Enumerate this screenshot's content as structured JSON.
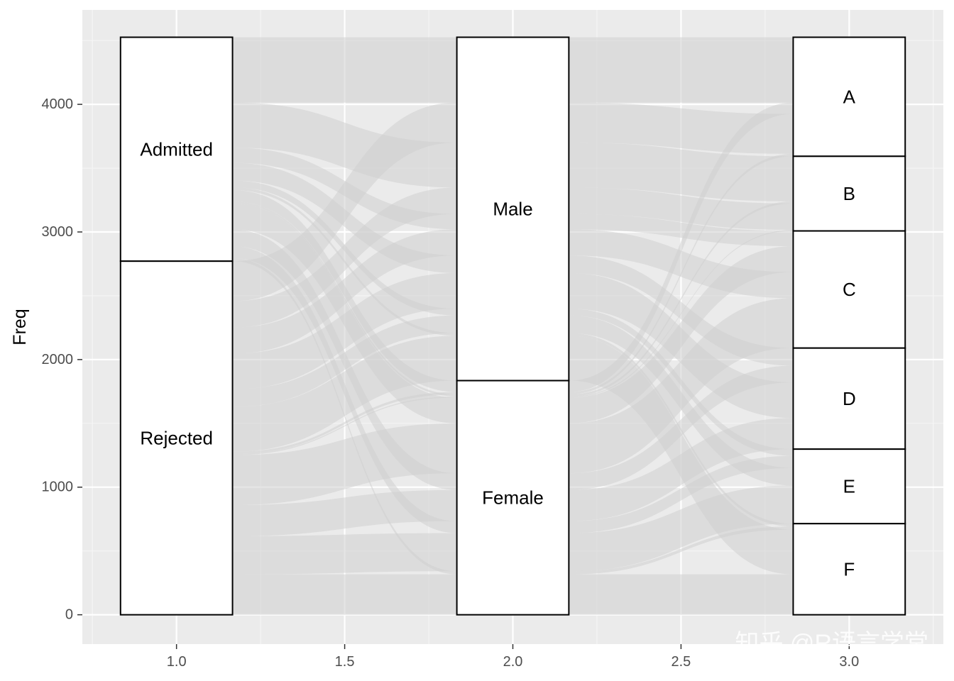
{
  "chart_data": {
    "type": "alluvial",
    "title": "",
    "xlabel": "",
    "ylabel": "Freq",
    "xlim": [
      0.72,
      3.28
    ],
    "ylim": [
      -230,
      4740
    ],
    "x_ticks": [
      "1.0",
      "1.5",
      "2.0",
      "2.5",
      "3.0"
    ],
    "x_tick_values": [
      1.0,
      1.5,
      2.0,
      2.5,
      3.0
    ],
    "y_ticks": [
      "0",
      "1000",
      "2000",
      "3000",
      "4000"
    ],
    "y_tick_values": [
      0,
      1000,
      2000,
      3000,
      4000
    ],
    "grid": true,
    "colors": {
      "panel": "#ebebeb",
      "grid": "#ffffff",
      "flow": "#cfcfcf",
      "stratum_fill": "#ffffff",
      "stratum_border": "#000000"
    },
    "axes": [
      {
        "x": 1.0,
        "strata": [
          {
            "label": "Admitted",
            "value": 1755
          },
          {
            "label": "Rejected",
            "value": 2771
          }
        ]
      },
      {
        "x": 2.0,
        "strata": [
          {
            "label": "Male",
            "value": 2691
          },
          {
            "label": "Female",
            "value": 1835
          }
        ]
      },
      {
        "x": 3.0,
        "strata": [
          {
            "label": "A",
            "value": 933
          },
          {
            "label": "B",
            "value": 585
          },
          {
            "label": "C",
            "value": 918
          },
          {
            "label": "D",
            "value": 792
          },
          {
            "label": "E",
            "value": 584
          },
          {
            "label": "F",
            "value": 714
          }
        ]
      }
    ],
    "flows": [
      {
        "admit": "Admitted",
        "gender": "Male",
        "dept": "A",
        "value": 512
      },
      {
        "admit": "Rejected",
        "gender": "Male",
        "dept": "A",
        "value": 313
      },
      {
        "admit": "Admitted",
        "gender": "Female",
        "dept": "A",
        "value": 89
      },
      {
        "admit": "Rejected",
        "gender": "Female",
        "dept": "A",
        "value": 19
      },
      {
        "admit": "Admitted",
        "gender": "Male",
        "dept": "B",
        "value": 353
      },
      {
        "admit": "Rejected",
        "gender": "Male",
        "dept": "B",
        "value": 207
      },
      {
        "admit": "Admitted",
        "gender": "Female",
        "dept": "B",
        "value": 17
      },
      {
        "admit": "Rejected",
        "gender": "Female",
        "dept": "B",
        "value": 8
      },
      {
        "admit": "Admitted",
        "gender": "Male",
        "dept": "C",
        "value": 120
      },
      {
        "admit": "Rejected",
        "gender": "Male",
        "dept": "C",
        "value": 205
      },
      {
        "admit": "Admitted",
        "gender": "Female",
        "dept": "C",
        "value": 202
      },
      {
        "admit": "Rejected",
        "gender": "Female",
        "dept": "C",
        "value": 391
      },
      {
        "admit": "Admitted",
        "gender": "Male",
        "dept": "D",
        "value": 138
      },
      {
        "admit": "Rejected",
        "gender": "Male",
        "dept": "D",
        "value": 279
      },
      {
        "admit": "Admitted",
        "gender": "Female",
        "dept": "D",
        "value": 131
      },
      {
        "admit": "Rejected",
        "gender": "Female",
        "dept": "D",
        "value": 244
      },
      {
        "admit": "Admitted",
        "gender": "Male",
        "dept": "E",
        "value": 53
      },
      {
        "admit": "Rejected",
        "gender": "Male",
        "dept": "E",
        "value": 138
      },
      {
        "admit": "Admitted",
        "gender": "Female",
        "dept": "E",
        "value": 94
      },
      {
        "admit": "Rejected",
        "gender": "Female",
        "dept": "E",
        "value": 299
      },
      {
        "admit": "Admitted",
        "gender": "Male",
        "dept": "F",
        "value": 22
      },
      {
        "admit": "Rejected",
        "gender": "Male",
        "dept": "F",
        "value": 351
      },
      {
        "admit": "Admitted",
        "gender": "Female",
        "dept": "F",
        "value": 24
      },
      {
        "admit": "Rejected",
        "gender": "Female",
        "dept": "F",
        "value": 317
      }
    ]
  },
  "watermark": "知乎 @R语言学堂"
}
